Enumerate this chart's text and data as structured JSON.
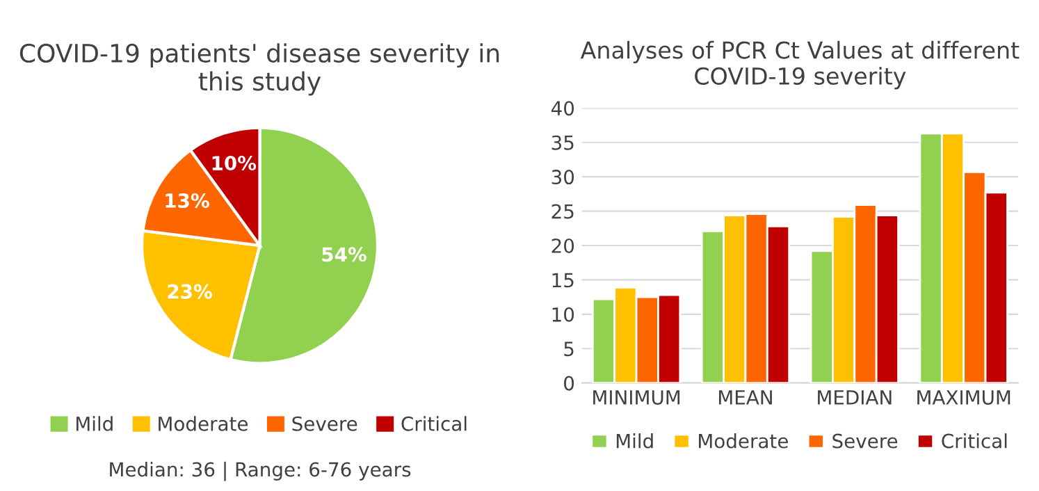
{
  "chart_data": [
    {
      "type": "pie",
      "title": "COVID-19 patients' disease severity in this study",
      "categories": [
        "Mild",
        "Moderate",
        "Severe",
        "Critical"
      ],
      "values": [
        54,
        23,
        13,
        10
      ],
      "colors": [
        "#92d050",
        "#ffc000",
        "#ff6600",
        "#c00000"
      ],
      "value_labels": [
        "54%",
        "23%",
        "13%",
        "10%"
      ],
      "legend": "bottom",
      "annotations": [
        "Median: 36 | Range: 6-76 years"
      ]
    },
    {
      "type": "bar",
      "title": "Analyses of PCR Ct Values at different COVID-19 severity",
      "categories": [
        "MINIMUM",
        "MEAN",
        "MEDIAN",
        "MAXIMUM"
      ],
      "series": [
        {
          "name": "Mild",
          "color": "#92d050",
          "values": [
            12.2,
            22.1,
            19.2,
            36.3
          ]
        },
        {
          "name": "Moderate",
          "color": "#ffc000",
          "values": [
            13.9,
            24.4,
            24.2,
            36.3
          ]
        },
        {
          "name": "Severe",
          "color": "#ff6600",
          "values": [
            12.5,
            24.6,
            25.9,
            30.7
          ]
        },
        {
          "name": "Critical",
          "color": "#c00000",
          "values": [
            12.8,
            22.8,
            24.4,
            27.7
          ]
        }
      ],
      "ylim": [
        0,
        40
      ],
      "yticks": [
        0,
        5,
        10,
        15,
        20,
        25,
        30,
        35,
        40
      ],
      "grid": "y",
      "legend": "bottom"
    }
  ]
}
